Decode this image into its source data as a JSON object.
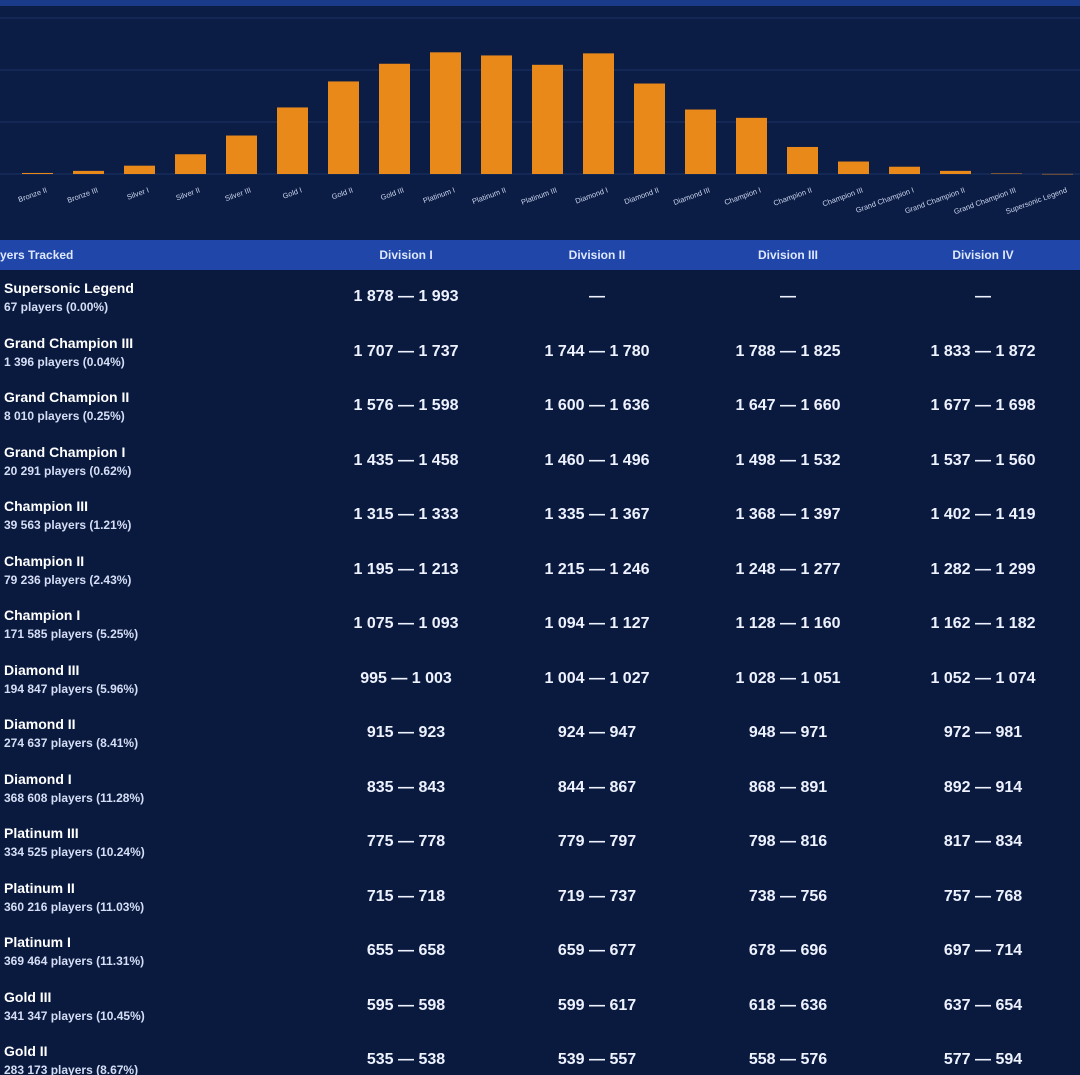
{
  "chart_data": {
    "type": "bar",
    "categories": [
      "Bronze II",
      "Bronze III",
      "Silver I",
      "Silver II",
      "Silver III",
      "Gold I",
      "Gold II",
      "Gold III",
      "Platinum I",
      "Platinum II",
      "Platinum III",
      "Diamond I",
      "Diamond II",
      "Diamond III",
      "Champion I",
      "Champion II",
      "Champion III",
      "Grand Champion I",
      "Grand Champion II",
      "Grand Champion III",
      "Supersonic Legend"
    ],
    "values": [
      1.0,
      3.0,
      8.0,
      19.0,
      37.0,
      64.0,
      89.0,
      106.0,
      117.0,
      114.0,
      105.0,
      116.0,
      87.0,
      62.0,
      54.0,
      26.0,
      12.0,
      7.0,
      3.0,
      0.5,
      0.1
    ],
    "ylim": [
      0,
      150
    ],
    "grid": true,
    "bar_color": "#e8891a",
    "grid_color": "#1d3566"
  },
  "table": {
    "columns": [
      "yers Tracked",
      "Division I",
      "Division II",
      "Division III",
      "Division IV"
    ],
    "rows": [
      {
        "rank": "Supersonic Legend",
        "players": "67 players (0.00%)",
        "divs": [
          "1 878 — 1 993",
          "—",
          "—",
          "—"
        ]
      },
      {
        "rank": "Grand Champion III",
        "players": "1 396 players (0.04%)",
        "divs": [
          "1 707 — 1 737",
          "1 744 — 1 780",
          "1 788 — 1 825",
          "1 833 — 1 872"
        ]
      },
      {
        "rank": "Grand Champion II",
        "players": "8 010 players (0.25%)",
        "divs": [
          "1 576 — 1 598",
          "1 600 — 1 636",
          "1 647 — 1 660",
          "1 677 — 1 698"
        ]
      },
      {
        "rank": "Grand Champion I",
        "players": "20 291 players (0.62%)",
        "divs": [
          "1 435 — 1 458",
          "1 460 — 1 496",
          "1 498 — 1 532",
          "1 537 — 1 560"
        ]
      },
      {
        "rank": "Champion III",
        "players": "39 563 players (1.21%)",
        "divs": [
          "1 315 — 1 333",
          "1 335 — 1 367",
          "1 368 — 1 397",
          "1 402 — 1 419"
        ]
      },
      {
        "rank": "Champion II",
        "players": "79 236 players (2.43%)",
        "divs": [
          "1 195 — 1 213",
          "1 215 — 1 246",
          "1 248 — 1 277",
          "1 282 — 1 299"
        ]
      },
      {
        "rank": "Champion I",
        "players": "171 585 players (5.25%)",
        "divs": [
          "1 075 — 1 093",
          "1 094 — 1 127",
          "1 128 — 1 160",
          "1 162 — 1 182"
        ]
      },
      {
        "rank": "Diamond III",
        "players": "194 847 players (5.96%)",
        "divs": [
          "995 — 1 003",
          "1 004 — 1 027",
          "1 028 — 1 051",
          "1 052 — 1 074"
        ]
      },
      {
        "rank": "Diamond II",
        "players": "274 637 players (8.41%)",
        "divs": [
          "915 — 923",
          "924 — 947",
          "948 — 971",
          "972 — 981"
        ]
      },
      {
        "rank": "Diamond I",
        "players": "368 608 players (11.28%)",
        "divs": [
          "835 — 843",
          "844 — 867",
          "868 — 891",
          "892 — 914"
        ]
      },
      {
        "rank": "Platinum III",
        "players": "334 525 players (10.24%)",
        "divs": [
          "775 — 778",
          "779 — 797",
          "798 — 816",
          "817 — 834"
        ]
      },
      {
        "rank": "Platinum II",
        "players": "360 216 players (11.03%)",
        "divs": [
          "715 — 718",
          "719 — 737",
          "738 — 756",
          "757 — 768"
        ]
      },
      {
        "rank": "Platinum I",
        "players": "369 464 players (11.31%)",
        "divs": [
          "655 — 658",
          "659 — 677",
          "678 — 696",
          "697 — 714"
        ]
      },
      {
        "rank": "Gold III",
        "players": "341 347 players (10.45%)",
        "divs": [
          "595 — 598",
          "599 — 617",
          "618 — 636",
          "637 — 654"
        ]
      },
      {
        "rank": "Gold II",
        "players": "283 173 players (8.67%)",
        "divs": [
          "535 — 538",
          "539 — 557",
          "558 — 576",
          "577 — 594"
        ]
      }
    ]
  }
}
